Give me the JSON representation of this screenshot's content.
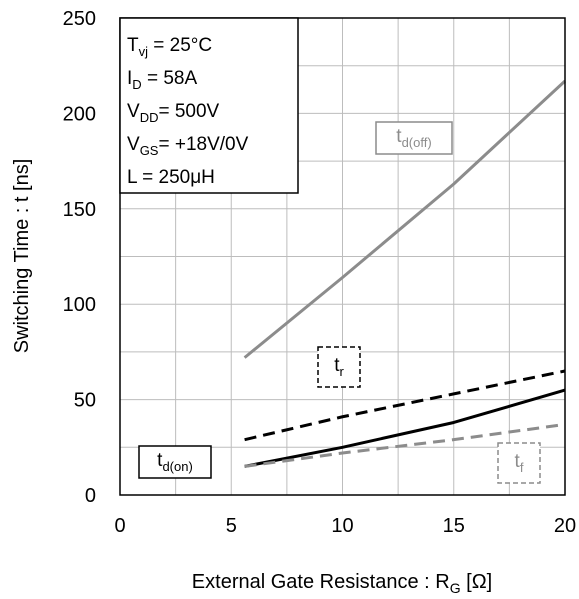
{
  "chart_data": {
    "type": "line",
    "xlabel_main": "External Gate Resistance : R",
    "xlabel_sub": "G",
    "xlabel_unit": " [Ω]",
    "ylabel": "Switching Time : t [ns]",
    "xlim": [
      0,
      20
    ],
    "ylim": [
      0,
      250
    ],
    "xticks": [
      "0",
      "5",
      "10",
      "15",
      "20"
    ],
    "yticks": [
      "0",
      "50",
      "100",
      "150",
      "200",
      "250"
    ],
    "grid": true,
    "conditions": [
      {
        "main": "T",
        "sub": "vj",
        "rest": " =   25°C"
      },
      {
        "main": "I",
        "sub": "D",
        "rest": " =   58A"
      },
      {
        "main": "V",
        "sub": "DD",
        "rest": "= 500V"
      },
      {
        "main": "V",
        "sub": "GS",
        "rest": "= +18V/0V"
      },
      {
        "main": "L",
        "sub": "",
        "rest": " =   250μH"
      }
    ],
    "series": [
      {
        "name_main": "t",
        "name_sub": "d(off)",
        "color": "#8c8c8c",
        "dash": "solid",
        "x": [
          5.6,
          10,
          15,
          20
        ],
        "y": [
          72,
          114,
          163,
          217
        ]
      },
      {
        "name_main": "t",
        "name_sub": "r",
        "color": "#000000",
        "dash": "dashed",
        "x": [
          5.6,
          10,
          15,
          20
        ],
        "y": [
          29,
          41,
          53,
          65
        ]
      },
      {
        "name_main": "t",
        "name_sub": "d(on)",
        "color": "#000000",
        "dash": "solid",
        "x": [
          5.6,
          10,
          15,
          20
        ],
        "y": [
          15,
          25,
          38,
          55
        ]
      },
      {
        "name_main": "t",
        "name_sub": "f",
        "color": "#8c8c8c",
        "dash": "dashed",
        "x": [
          5.6,
          10,
          15,
          20
        ],
        "y": [
          15,
          22,
          29,
          37
        ]
      }
    ]
  }
}
